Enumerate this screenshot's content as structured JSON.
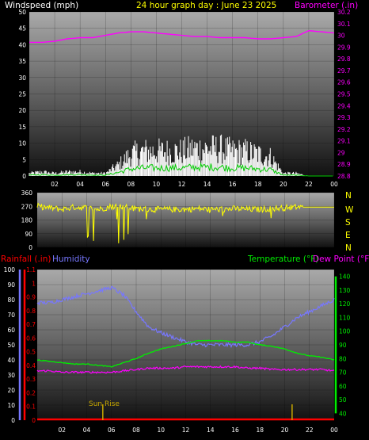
{
  "header": {
    "left_label": "Windspeed (mph)",
    "title": "24 hour graph day : June 23 2025",
    "right_label": "Barometer (.in)"
  },
  "colors": {
    "background": "#000000",
    "title": "#ffff00",
    "header_text": "#ffffff",
    "barometer": "#ff00ff",
    "windspeed": "#ffffff",
    "wind_avg": "#00cc00",
    "wind_direction": "#ffff00",
    "humidity": "#7777ff",
    "temperature": "#00ee00",
    "dew_point": "#ff00ff",
    "rainfall": "#ff0000",
    "sun_marker": "#c8a800"
  },
  "direction_labels": [
    "N",
    "W",
    "S",
    "E",
    "N"
  ],
  "bottom_header": {
    "rainfall": "Rainfall (.in)",
    "humidity": "Humidity",
    "temperature": "Temperature (°F)",
    "dew_point": "Dew Point (°F)"
  },
  "annotations": {
    "sun_rise": "Sun Rise"
  },
  "chart_data": [
    {
      "type": "line",
      "title": "24 hour graph day : June 23 2025",
      "x_ticks": [
        "02",
        "04",
        "06",
        "08",
        "10",
        "12",
        "14",
        "16",
        "18",
        "20",
        "22",
        "00"
      ],
      "x": [
        0,
        1,
        2,
        3,
        4,
        5,
        6,
        7,
        8,
        9,
        10,
        11,
        12,
        13,
        14,
        15,
        16,
        17,
        18,
        19,
        20,
        21,
        22,
        23,
        24
      ],
      "y_left": {
        "label": "Windspeed (mph)",
        "ticks": [
          0,
          5,
          10,
          15,
          20,
          25,
          30,
          35,
          40,
          45,
          50
        ],
        "lim": [
          0,
          50
        ]
      },
      "y_right": {
        "label": "Barometer (.in)",
        "ticks": [
          "28.8",
          "28.9",
          "29",
          "29.1",
          "29.2",
          "29.3",
          "29.4",
          "29.5",
          "29.6",
          "29.7",
          "29.8",
          "29.9",
          "30",
          "30.1",
          "30.2"
        ],
        "lim": [
          28.8,
          30.2
        ]
      },
      "series": [
        {
          "name": "Windspeed (mph)",
          "kind": "gust",
          "values": [
            1,
            1.5,
            1,
            1.5,
            1.5,
            1,
            1,
            4,
            8,
            9,
            9,
            9,
            9,
            10,
            10,
            10,
            9,
            9,
            8,
            7,
            1,
            1,
            0,
            0,
            0
          ]
        },
        {
          "name": "Barometer (.in)",
          "values": [
            29.94,
            29.94,
            29.95,
            29.97,
            29.98,
            29.98,
            30.0,
            30.02,
            30.03,
            30.03,
            30.02,
            30.01,
            30.0,
            29.99,
            29.99,
            29.98,
            29.98,
            29.98,
            29.97,
            29.97,
            29.98,
            29.99,
            30.04,
            30.03,
            30.02
          ]
        }
      ]
    },
    {
      "type": "line",
      "title": "",
      "x_ticks": [
        "02",
        "04",
        "06",
        "08",
        "10",
        "12",
        "14",
        "16",
        "18",
        "20",
        "22",
        "00"
      ],
      "y_left": {
        "label": "",
        "ticks": [
          0,
          90,
          180,
          270,
          360
        ],
        "lim": [
          0,
          360
        ]
      },
      "series": [
        {
          "name": "",
          "values": [
            270,
            260,
            250,
            265,
            260,
            250,
            270,
            265,
            255,
            250,
            250,
            250,
            250,
            255,
            250,
            250,
            255,
            250,
            250,
            255,
            260,
            265,
            265,
            265,
            265
          ]
        }
      ]
    },
    {
      "type": "line",
      "title": "",
      "x_ticks": [
        "02",
        "04",
        "06",
        "08",
        "10",
        "12",
        "14",
        "16",
        "18",
        "20",
        "22",
        "00"
      ],
      "x": [
        0,
        1,
        2,
        3,
        4,
        5,
        6,
        7,
        8,
        9,
        10,
        11,
        12,
        13,
        14,
        15,
        16,
        17,
        18,
        19,
        20,
        21,
        22,
        23,
        24
      ],
      "y_left_outer": {
        "label": "Humidity",
        "ticks": [
          0,
          10,
          20,
          30,
          40,
          50,
          60,
          70,
          80,
          90,
          100
        ],
        "lim": [
          0,
          100
        ]
      },
      "y_left_inner": {
        "label": "Rainfall (.in)",
        "ticks": [
          "0",
          "0.1",
          "0.2",
          "0.3",
          "0.4",
          "0.5",
          "0.6",
          "0.7",
          "0.8",
          "0.9",
          "1",
          "1.1"
        ],
        "lim": [
          0,
          1.1
        ]
      },
      "y_right": {
        "label": "Temperature (°F)",
        "ticks": [
          40,
          50,
          60,
          70,
          80,
          90,
          100,
          110,
          120,
          130,
          140
        ],
        "lim": [
          35,
          145
        ]
      },
      "series": [
        {
          "name": "Humidity",
          "values": [
            78,
            78,
            80,
            82,
            84,
            86,
            88,
            83,
            72,
            62,
            58,
            55,
            52,
            50,
            50,
            50,
            50,
            50,
            52,
            56,
            62,
            68,
            72,
            76,
            80
          ]
        },
        {
          "name": "Temperature (°F)",
          "values": [
            79,
            78,
            77,
            76,
            76,
            75,
            74,
            77,
            80,
            84,
            87,
            89,
            91,
            93,
            93,
            93,
            92,
            92,
            90,
            89,
            87,
            84,
            82,
            81,
            79
          ]
        },
        {
          "name": "Dew Point (°F)",
          "values": [
            71,
            71,
            70,
            70,
            70,
            70,
            70,
            71,
            72,
            73,
            73,
            73,
            74,
            74,
            74,
            74,
            74,
            73,
            73,
            72,
            72,
            72,
            72,
            72,
            71
          ]
        },
        {
          "name": "Rainfall (.in)",
          "values": [
            0,
            0,
            0,
            0,
            0,
            0,
            0,
            0,
            0,
            0,
            0,
            0,
            0,
            0,
            0,
            0,
            0,
            0,
            0,
            0,
            0,
            0,
            0,
            0,
            0
          ]
        }
      ],
      "markers": [
        {
          "label": "Sun Rise",
          "x": 5.3
        },
        {
          "label": "",
          "x": 20.6
        }
      ]
    }
  ]
}
